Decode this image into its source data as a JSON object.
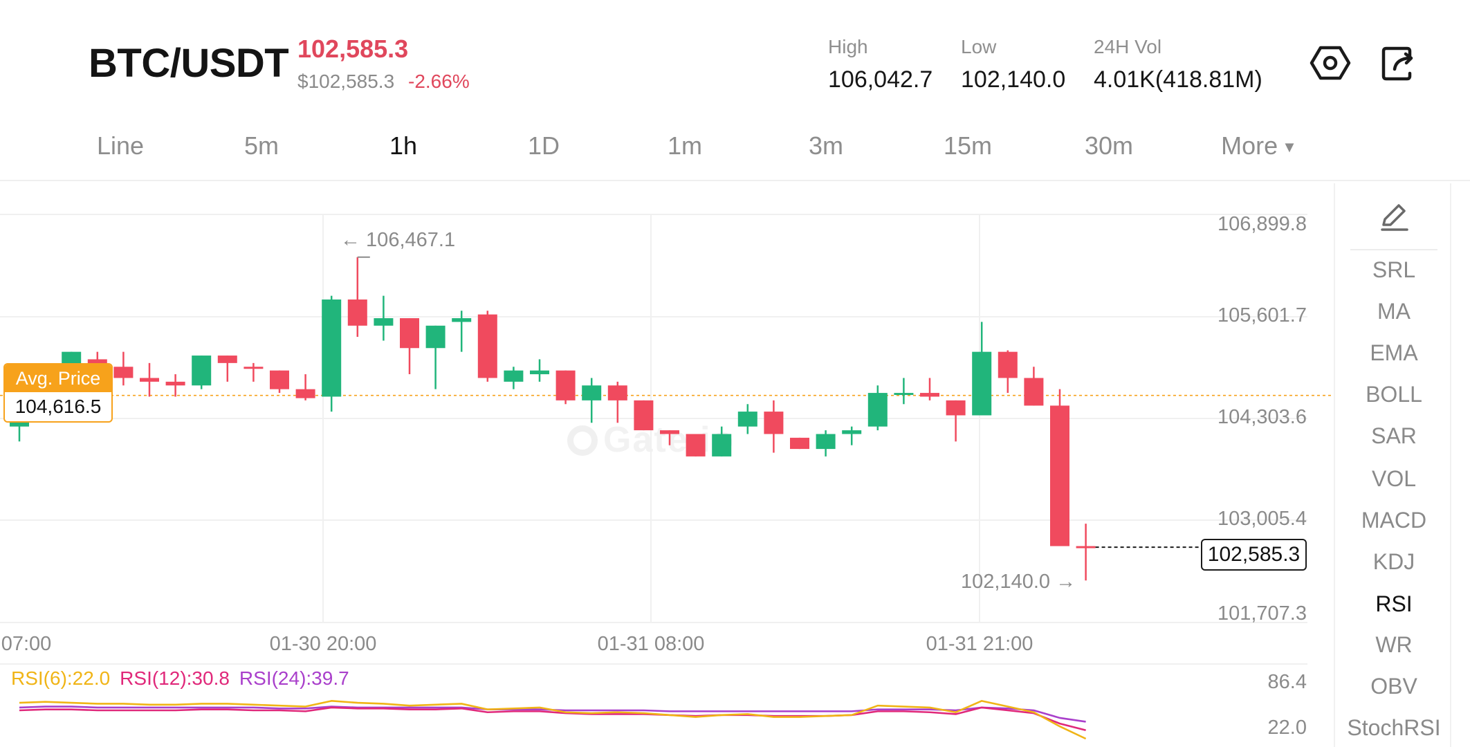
{
  "header": {
    "pair": "BTC/USDT",
    "last_price": "102,585.3",
    "fiat_price": "$102,585.3",
    "change_pct": "-2.66%",
    "stats": {
      "high": {
        "label": "High",
        "value": "106,042.7"
      },
      "low": {
        "label": "Low",
        "value": "102,140.0"
      },
      "vol": {
        "label": "24H Vol",
        "value": "4.01K(418.81M)"
      }
    },
    "icons": {
      "settings": "settings-icon",
      "share": "share-icon"
    }
  },
  "tabs": [
    {
      "label": "Line",
      "active": false
    },
    {
      "label": "5m",
      "active": false
    },
    {
      "label": "1h",
      "active": true
    },
    {
      "label": "1D",
      "active": false
    },
    {
      "label": "1m",
      "active": false
    },
    {
      "label": "3m",
      "active": false
    },
    {
      "label": "15m",
      "active": false
    },
    {
      "label": "30m",
      "active": false
    },
    {
      "label": "More",
      "active": false
    }
  ],
  "chart": {
    "avg_price": {
      "label": "Avg. Price",
      "value": "104,616.5"
    },
    "current_price_tag": "102,585.3",
    "max_marker": "← 106,467.1",
    "min_marker": "102,140.0 →",
    "watermark": "Gate.io",
    "y_axis": [
      "106,899.8",
      "105,601.7",
      "104,303.6",
      "103,005.4",
      "101,707.3"
    ],
    "x_axis": [
      "07:00",
      "01-30 20:00",
      "01-31 08:00",
      "01-31 21:00"
    ],
    "rsi": {
      "legend": [
        "RSI(6):22.0",
        "RSI(12):30.8",
        "RSI(24):39.7"
      ],
      "y_axis": [
        "86.4",
        "22.0"
      ]
    }
  },
  "indicators": {
    "items": [
      "SRL",
      "MA",
      "EMA",
      "BOLL",
      "SAR",
      "VOL",
      "MACD",
      "KDJ",
      "RSI",
      "WR",
      "OBV",
      "StochRSI"
    ],
    "active": "RSI"
  },
  "colors": {
    "up": "#21b57b",
    "down": "#f04a5e",
    "avg": "#f7a21b",
    "rsi6": "#f0b416",
    "rsi12": "#e0287a",
    "rsi24": "#a93fcb"
  },
  "chart_data": {
    "type": "candlestick",
    "interval": "1h",
    "ylim": [
      101707.3,
      106899.8
    ],
    "x_ticks": [
      "07:00",
      "01-30 20:00",
      "01-31 08:00",
      "01-31 21:00"
    ],
    "candles": [
      {
        "o": 104200,
        "h": 104700,
        "l": 104000,
        "c": 104400
      },
      {
        "o": 104900,
        "h": 105000,
        "l": 104700,
        "c": 104900
      },
      {
        "o": 104900,
        "h": 105200,
        "l": 104850,
        "c": 105200
      },
      {
        "o": 105100,
        "h": 105200,
        "l": 104950,
        "c": 105000
      },
      {
        "o": 105000,
        "h": 105200,
        "l": 104750,
        "c": 104850
      },
      {
        "o": 104850,
        "h": 105050,
        "l": 104600,
        "c": 104800
      },
      {
        "o": 104800,
        "h": 104900,
        "l": 104600,
        "c": 104750
      },
      {
        "o": 104750,
        "h": 105150,
        "l": 104700,
        "c": 105150
      },
      {
        "o": 105150,
        "h": 105150,
        "l": 104800,
        "c": 105050
      },
      {
        "o": 105000,
        "h": 105050,
        "l": 104800,
        "c": 104980
      },
      {
        "o": 104950,
        "h": 104950,
        "l": 104650,
        "c": 104700
      },
      {
        "o": 104700,
        "h": 104900,
        "l": 104550,
        "c": 104580
      },
      {
        "o": 104600,
        "h": 105950,
        "l": 104400,
        "c": 105900
      },
      {
        "o": 105900,
        "h": 106467.1,
        "l": 105400,
        "c": 105550
      },
      {
        "o": 105550,
        "h": 105950,
        "l": 105350,
        "c": 105650
      },
      {
        "o": 105650,
        "h": 105650,
        "l": 104900,
        "c": 105250
      },
      {
        "o": 105250,
        "h": 105550,
        "l": 104700,
        "c": 105550
      },
      {
        "o": 105600,
        "h": 105750,
        "l": 105200,
        "c": 105650
      },
      {
        "o": 105700,
        "h": 105750,
        "l": 104800,
        "c": 104850
      },
      {
        "o": 104800,
        "h": 105000,
        "l": 104700,
        "c": 104950
      },
      {
        "o": 104900,
        "h": 105100,
        "l": 104800,
        "c": 104950
      },
      {
        "o": 104950,
        "h": 104950,
        "l": 104500,
        "c": 104550
      },
      {
        "o": 104550,
        "h": 104850,
        "l": 104250,
        "c": 104750
      },
      {
        "o": 104750,
        "h": 104800,
        "l": 104250,
        "c": 104550
      },
      {
        "o": 104550,
        "h": 104550,
        "l": 104150,
        "c": 104150
      },
      {
        "o": 104150,
        "h": 104150,
        "l": 103950,
        "c": 104100
      },
      {
        "o": 104100,
        "h": 104100,
        "l": 103800,
        "c": 103800
      },
      {
        "o": 103800,
        "h": 104200,
        "l": 103800,
        "c": 104100
      },
      {
        "o": 104200,
        "h": 104500,
        "l": 104100,
        "c": 104400
      },
      {
        "o": 104400,
        "h": 104550,
        "l": 103850,
        "c": 104100
      },
      {
        "o": 104050,
        "h": 104050,
        "l": 103900,
        "c": 103900
      },
      {
        "o": 103900,
        "h": 104150,
        "l": 103800,
        "c": 104100
      },
      {
        "o": 104100,
        "h": 104200,
        "l": 103950,
        "c": 104150
      },
      {
        "o": 104200,
        "h": 104750,
        "l": 104150,
        "c": 104650
      },
      {
        "o": 104650,
        "h": 104850,
        "l": 104500,
        "c": 104650
      },
      {
        "o": 104650,
        "h": 104850,
        "l": 104550,
        "c": 104600
      },
      {
        "o": 104550,
        "h": 104550,
        "l": 104000,
        "c": 104350
      },
      {
        "o": 104350,
        "h": 105600,
        "l": 104350,
        "c": 105200
      },
      {
        "o": 105200,
        "h": 105220,
        "l": 104650,
        "c": 104850
      },
      {
        "o": 104850,
        "h": 105000,
        "l": 104480,
        "c": 104480
      },
      {
        "o": 104480,
        "h": 104700,
        "l": 102600,
        "c": 102600
      },
      {
        "o": 102600,
        "h": 102900,
        "l": 102140,
        "c": 102585.3
      }
    ],
    "rsi": {
      "ylim": [
        22.0,
        86.4
      ],
      "rsi6": [
        60,
        61,
        60,
        59,
        59,
        58,
        58,
        59,
        59,
        58,
        57,
        56,
        62,
        60,
        59,
        57,
        58,
        59,
        53,
        54,
        55,
        50,
        49,
        50,
        49,
        47,
        45,
        47,
        48,
        45,
        45,
        46,
        47,
        57,
        56,
        55,
        50,
        62,
        56,
        50,
        35,
        22
      ],
      "rsi12": [
        52,
        53,
        53,
        52,
        52,
        52,
        52,
        53,
        53,
        52,
        52,
        51,
        55,
        54,
        54,
        53,
        53,
        54,
        50,
        51,
        51,
        49,
        48,
        48,
        48,
        47,
        46,
        47,
        47,
        46,
        46,
        46,
        47,
        51,
        51,
        50,
        48,
        55,
        52,
        49,
        38,
        31
      ],
      "rsi24": [
        55,
        56,
        56,
        55,
        55,
        55,
        55,
        55,
        55,
        55,
        54,
        54,
        56,
        55,
        55,
        55,
        55,
        55,
        53,
        53,
        53,
        52,
        52,
        52,
        52,
        51,
        51,
        51,
        51,
        51,
        51,
        51,
        51,
        53,
        53,
        53,
        52,
        55,
        54,
        52,
        44,
        40
      ]
    }
  }
}
